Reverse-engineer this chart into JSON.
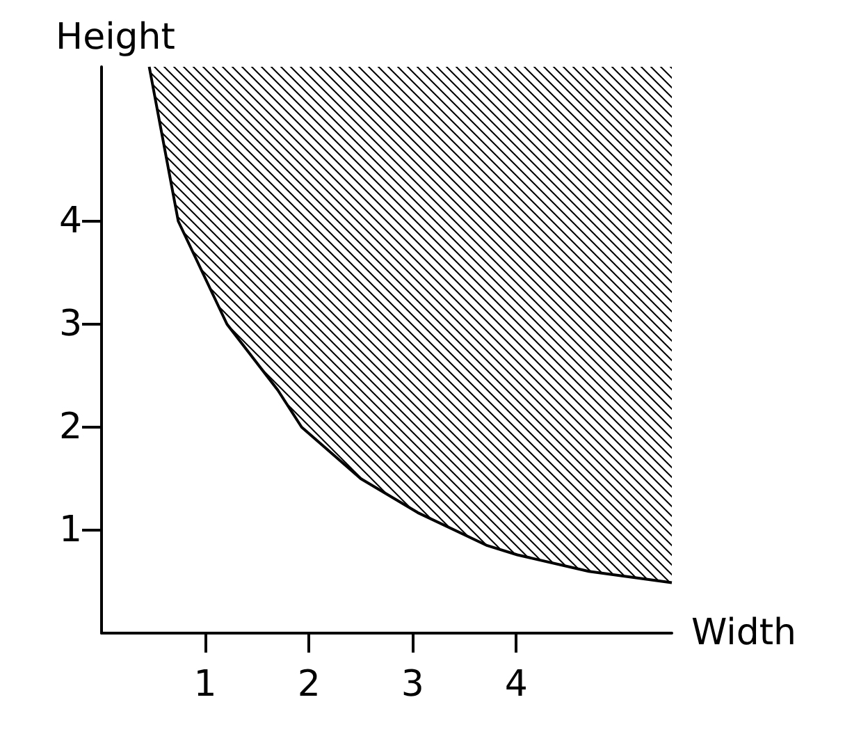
{
  "chart_data": {
    "type": "line",
    "xlabel": "Width",
    "ylabel": "Height",
    "x": [
      0.46,
      0.74,
      1.21,
      1.7,
      1.93,
      2.5,
      3.05,
      3.72,
      4.01,
      4.7,
      5.5
    ],
    "series": [
      {
        "color": "#000000",
        "values": [
          5.5,
          4.0,
          3.0,
          2.36,
          2.0,
          1.5,
          1.17,
          0.85,
          0.76,
          0.6,
          0.49
        ],
        "lower": [
          5.5,
          4.0,
          3.0,
          2.36,
          2.0,
          1.5,
          1.17,
          0.85,
          0.76,
          0.6,
          0.49
        ],
        "upper": [
          5.5,
          5.5,
          5.5,
          5.5,
          5.5,
          5.5,
          5.5,
          5.5,
          5.5,
          5.5,
          5.5
        ]
      }
    ],
    "xlim": [
      0,
      5.5
    ],
    "ylim": [
      0,
      5.5
    ],
    "xticks": [
      1,
      2,
      3,
      4
    ],
    "yticks": [
      1,
      2,
      3,
      4
    ],
    "grid": false,
    "marker": "none",
    "line_style": "solid"
  }
}
